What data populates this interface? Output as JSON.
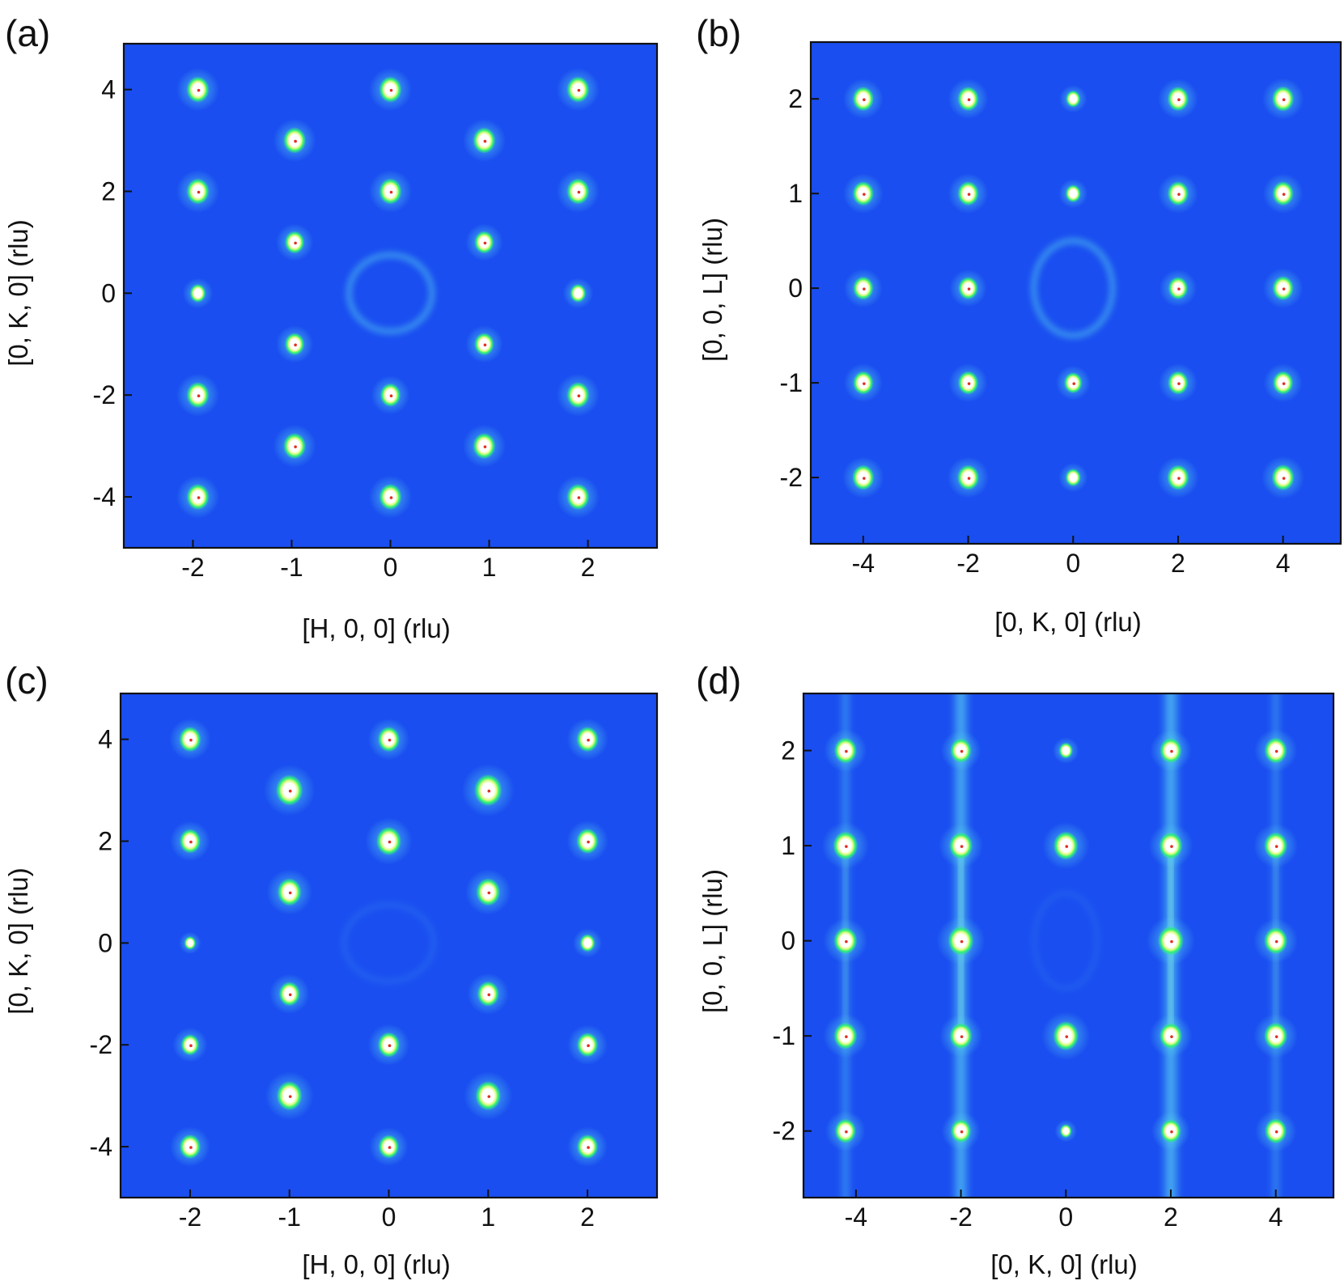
{
  "colors": {
    "background": "#1a4ef0",
    "peak_core": "#ffffff",
    "peak_halo": "#2df07a",
    "peak_center": "#e03020",
    "diffuse": "#4fc6ef",
    "frame": "#111111"
  },
  "chart_data": [
    {
      "type": "heatmap",
      "panel_label": "(a)",
      "xlabel": "[H, 0, 0] (rlu)",
      "ylabel": "[0, K, 0] (rlu)",
      "xlim": [
        -2.7,
        2.7
      ],
      "ylim": [
        -5.0,
        4.9
      ],
      "xticks": [
        -2,
        -1,
        0,
        1,
        2
      ],
      "xtick_labels": [
        "-2",
        "-1",
        "0",
        "1",
        "2"
      ],
      "yticks": [
        -4,
        -2,
        0,
        2,
        4
      ],
      "ytick_labels": [
        "-4",
        "-2",
        "0",
        "2",
        "4"
      ],
      "peaks": [
        {
          "x": -1.95,
          "y": 4.0,
          "i": 1.0
        },
        {
          "x": 0.0,
          "y": 4.0,
          "i": 1.0
        },
        {
          "x": 1.9,
          "y": 4.0,
          "i": 1.0
        },
        {
          "x": -0.97,
          "y": 3.0,
          "i": 1.0
        },
        {
          "x": 0.95,
          "y": 3.0,
          "i": 1.0
        },
        {
          "x": -1.95,
          "y": 2.0,
          "i": 1.0
        },
        {
          "x": 0.0,
          "y": 2.0,
          "i": 1.0
        },
        {
          "x": 1.9,
          "y": 2.0,
          "i": 1.0
        },
        {
          "x": -0.97,
          "y": 1.0,
          "i": 0.8
        },
        {
          "x": 0.95,
          "y": 1.0,
          "i": 0.8
        },
        {
          "x": -1.95,
          "y": 0.0,
          "i": 0.55
        },
        {
          "x": 1.9,
          "y": 0.0,
          "i": 0.55
        },
        {
          "x": -0.97,
          "y": -1.0,
          "i": 0.8
        },
        {
          "x": 0.95,
          "y": -1.0,
          "i": 0.8
        },
        {
          "x": -1.95,
          "y": -2.0,
          "i": 1.0
        },
        {
          "x": 0.0,
          "y": -2.0,
          "i": 0.85
        },
        {
          "x": 1.9,
          "y": -2.0,
          "i": 1.0
        },
        {
          "x": -0.97,
          "y": -3.0,
          "i": 1.0
        },
        {
          "x": 0.95,
          "y": -3.0,
          "i": 1.0
        },
        {
          "x": -1.95,
          "y": -4.0,
          "i": 1.0
        },
        {
          "x": 0.0,
          "y": -4.0,
          "i": 1.0
        },
        {
          "x": 1.9,
          "y": -4.0,
          "i": 1.0
        }
      ],
      "diffuse_ring": {
        "x": 0.0,
        "y": 0.0,
        "rx": 0.42,
        "ry": 0.75,
        "strength": 0.6
      },
      "rods": []
    },
    {
      "type": "heatmap",
      "panel_label": "(b)",
      "xlabel": "[0, K, 0] (rlu)",
      "ylabel": "[0, 0, L] (rlu)",
      "xlim": [
        -5.0,
        5.1
      ],
      "ylim": [
        -2.7,
        2.6
      ],
      "xticks": [
        -4,
        -2,
        0,
        2,
        4
      ],
      "xtick_labels": [
        "-4",
        "-2",
        "0",
        "2",
        "4"
      ],
      "yticks": [
        -2,
        -1,
        0,
        1,
        2
      ],
      "ytick_labels": [
        "-2",
        "-1",
        "0",
        "1",
        "2"
      ],
      "peaks": [
        {
          "x": -4.0,
          "y": 2.0,
          "i": 0.9
        },
        {
          "x": -2.0,
          "y": 2.0,
          "i": 0.9
        },
        {
          "x": 0.0,
          "y": 2.0,
          "i": 0.45
        },
        {
          "x": 2.0,
          "y": 2.0,
          "i": 0.9
        },
        {
          "x": 4.0,
          "y": 2.0,
          "i": 0.95
        },
        {
          "x": -4.0,
          "y": 1.0,
          "i": 0.9
        },
        {
          "x": -2.0,
          "y": 1.0,
          "i": 0.9
        },
        {
          "x": 0.0,
          "y": 1.0,
          "i": 0.5
        },
        {
          "x": 2.0,
          "y": 1.0,
          "i": 0.9
        },
        {
          "x": 4.0,
          "y": 1.0,
          "i": 0.9
        },
        {
          "x": -4.0,
          "y": 0.0,
          "i": 0.85
        },
        {
          "x": -2.0,
          "y": 0.0,
          "i": 0.8
        },
        {
          "x": 2.0,
          "y": 0.0,
          "i": 0.8
        },
        {
          "x": 4.0,
          "y": 0.0,
          "i": 0.9
        },
        {
          "x": -4.0,
          "y": -1.0,
          "i": 0.85
        },
        {
          "x": -2.0,
          "y": -1.0,
          "i": 0.85
        },
        {
          "x": 0.0,
          "y": -1.0,
          "i": 0.7
        },
        {
          "x": 2.0,
          "y": -1.0,
          "i": 0.85
        },
        {
          "x": 4.0,
          "y": -1.0,
          "i": 0.85
        },
        {
          "x": -4.0,
          "y": -2.0,
          "i": 0.95
        },
        {
          "x": -2.0,
          "y": -2.0,
          "i": 0.95
        },
        {
          "x": 0.0,
          "y": -2.0,
          "i": 0.5
        },
        {
          "x": 2.0,
          "y": -2.0,
          "i": 0.95
        },
        {
          "x": 4.0,
          "y": -2.0,
          "i": 1.0
        }
      ],
      "diffuse_ring": {
        "x": 0.0,
        "y": 0.0,
        "rx": 0.75,
        "ry": 0.5,
        "strength": 0.6
      },
      "rods": []
    },
    {
      "type": "heatmap",
      "panel_label": "(c)",
      "xlabel": "[H, 0, 0] (rlu)",
      "ylabel": "[0, K, 0] (rlu)",
      "xlim": [
        -2.7,
        2.7
      ],
      "ylim": [
        -5.0,
        4.9
      ],
      "xticks": [
        -2,
        -1,
        0,
        1,
        2
      ],
      "xtick_labels": [
        "-2",
        "-1",
        "0",
        "1",
        "2"
      ],
      "yticks": [
        -4,
        -2,
        0,
        2,
        4
      ],
      "ytick_labels": [
        "-4",
        "-2",
        "0",
        "2",
        "4"
      ],
      "peaks": [
        {
          "x": -2.0,
          "y": 4.0,
          "i": 0.95
        },
        {
          "x": 0.0,
          "y": 4.0,
          "i": 0.95
        },
        {
          "x": 2.0,
          "y": 4.0,
          "i": 0.95
        },
        {
          "x": -1.0,
          "y": 3.0,
          "i": 1.3
        },
        {
          "x": 1.0,
          "y": 3.0,
          "i": 1.35
        },
        {
          "x": -2.0,
          "y": 2.0,
          "i": 0.9
        },
        {
          "x": 0.0,
          "y": 2.0,
          "i": 1.15
        },
        {
          "x": 2.0,
          "y": 2.0,
          "i": 0.95
        },
        {
          "x": -1.0,
          "y": 1.0,
          "i": 1.1
        },
        {
          "x": 1.0,
          "y": 1.0,
          "i": 1.1
        },
        {
          "x": -2.0,
          "y": 0.0,
          "i": 0.25
        },
        {
          "x": 2.0,
          "y": 0.0,
          "i": 0.5
        },
        {
          "x": -1.0,
          "y": -1.0,
          "i": 0.9
        },
        {
          "x": 1.0,
          "y": -1.0,
          "i": 0.95
        },
        {
          "x": -2.0,
          "y": -2.0,
          "i": 0.7
        },
        {
          "x": 0.0,
          "y": -2.0,
          "i": 0.95
        },
        {
          "x": 2.0,
          "y": -2.0,
          "i": 0.9
        },
        {
          "x": -1.0,
          "y": -3.0,
          "i": 1.2
        },
        {
          "x": 1.0,
          "y": -3.0,
          "i": 1.2
        },
        {
          "x": -2.0,
          "y": -4.0,
          "i": 0.9
        },
        {
          "x": 0.0,
          "y": -4.0,
          "i": 0.85
        },
        {
          "x": 2.0,
          "y": -4.0,
          "i": 0.9
        }
      ],
      "diffuse_ring": {
        "x": 0.0,
        "y": 0.0,
        "rx": 0.45,
        "ry": 0.75,
        "strength": 0.15
      },
      "rods": []
    },
    {
      "type": "heatmap",
      "panel_label": "(d)",
      "xlabel": "[0, K, 0] (rlu)",
      "ylabel": "[0, 0, L] (rlu)",
      "xlim": [
        -5.0,
        5.1
      ],
      "ylim": [
        -2.7,
        2.6
      ],
      "xticks": [
        -4,
        -2,
        0,
        2,
        4
      ],
      "xtick_labels": [
        "-4",
        "-2",
        "0",
        "2",
        "4"
      ],
      "yticks": [
        -2,
        -1,
        0,
        1,
        2
      ],
      "ytick_labels": [
        "-2",
        "-1",
        "0",
        "1",
        "2"
      ],
      "peaks": [
        {
          "x": -4.2,
          "y": 2.0,
          "i": 1.0
        },
        {
          "x": -2.0,
          "y": 2.0,
          "i": 0.9
        },
        {
          "x": 0.0,
          "y": 2.0,
          "i": 0.4
        },
        {
          "x": 2.0,
          "y": 2.0,
          "i": 0.95
        },
        {
          "x": 4.0,
          "y": 2.0,
          "i": 1.0
        },
        {
          "x": -4.2,
          "y": 1.0,
          "i": 1.15
        },
        {
          "x": -2.0,
          "y": 1.0,
          "i": 1.05
        },
        {
          "x": 0.0,
          "y": 1.0,
          "i": 1.15
        },
        {
          "x": 2.0,
          "y": 1.0,
          "i": 1.05
        },
        {
          "x": 4.0,
          "y": 1.0,
          "i": 1.05
        },
        {
          "x": -4.2,
          "y": 0.0,
          "i": 1.05
        },
        {
          "x": -2.0,
          "y": 0.0,
          "i": 1.2
        },
        {
          "x": 2.0,
          "y": 0.0,
          "i": 1.2
        },
        {
          "x": 4.0,
          "y": 0.0,
          "i": 1.05
        },
        {
          "x": -4.2,
          "y": -1.0,
          "i": 1.05
        },
        {
          "x": -2.0,
          "y": -1.0,
          "i": 1.0
        },
        {
          "x": 0.0,
          "y": -1.0,
          "i": 1.2
        },
        {
          "x": 2.0,
          "y": -1.0,
          "i": 1.0
        },
        {
          "x": 4.0,
          "y": -1.0,
          "i": 1.05
        },
        {
          "x": -4.2,
          "y": -2.0,
          "i": 0.9
        },
        {
          "x": -2.0,
          "y": -2.0,
          "i": 0.85
        },
        {
          "x": 0.0,
          "y": -2.0,
          "i": 0.25
        },
        {
          "x": 2.0,
          "y": -2.0,
          "i": 0.85
        },
        {
          "x": 4.0,
          "y": -2.0,
          "i": 0.95
        }
      ],
      "diffuse_ring": {
        "x": 0.0,
        "y": 0.0,
        "rx": 0.6,
        "ry": 0.5,
        "strength": 0.12
      },
      "rods": [
        {
          "x": -4.2,
          "strength": 0.35
        },
        {
          "x": -2.0,
          "strength": 0.85
        },
        {
          "x": 2.0,
          "strength": 0.9
        },
        {
          "x": 4.0,
          "strength": 0.3
        }
      ]
    }
  ]
}
